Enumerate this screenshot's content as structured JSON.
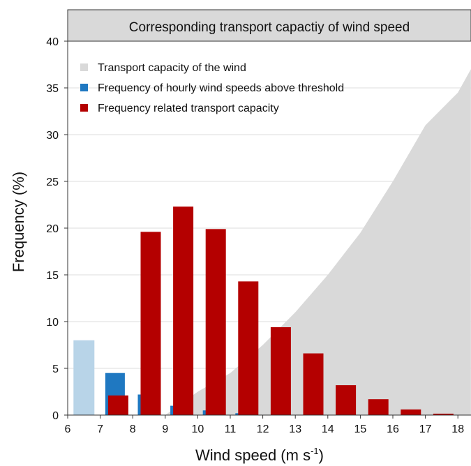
{
  "chart_data": {
    "type": "bar",
    "panel_title": "Corresponding transport capactiy of wind speed",
    "xlabel_main": "Wind speed (m s",
    "xlabel_sup": "-1",
    "xlabel_close": ")",
    "ylabel": "Frequency (%)",
    "xlim": [
      6,
      18.4
    ],
    "ylim": [
      0,
      40
    ],
    "xticks": [
      "6",
      "7",
      "8",
      "9",
      "10",
      "11",
      "12",
      "13",
      "14",
      "15",
      "16",
      "17",
      "18"
    ],
    "yticks": [
      "0",
      "5",
      "10",
      "15",
      "20",
      "25",
      "30",
      "35",
      "40"
    ],
    "grid": true,
    "legend_position": "top-left",
    "legend": [
      {
        "label": "Transport capacity of the wind",
        "color": "#d9d9d9"
      },
      {
        "label": "Frequency of hourly wind speeds above threshold",
        "color": "#1f78c1"
      },
      {
        "label": "Frequency related transport capacity",
        "color": "#b40000"
      }
    ],
    "transport_capacity_curve": {
      "name": "Transport capacity of the wind",
      "color": "#d9d9d9",
      "x": [
        9,
        10,
        11,
        12,
        13,
        14,
        15,
        16,
        17,
        18,
        18.4
      ],
      "y": [
        0,
        2.5,
        4.5,
        7.5,
        11,
        15,
        19.5,
        25,
        31,
        34.5,
        37
      ]
    },
    "series": [
      {
        "name": "Frequency of hourly wind speeds above threshold",
        "color": "#1f78c1",
        "x": [
          6.5,
          7.5,
          8.5,
          9.5,
          10.5,
          11.5
        ],
        "values": [
          8.0,
          4.5,
          2.2,
          1.0,
          0.5,
          0.2
        ],
        "bar_colors": [
          "#b8d4e8",
          "#1f78c1",
          "#1f78c1",
          "#1f78c1",
          "#1f78c1",
          "#1f78c1"
        ]
      },
      {
        "name": "Frequency related transport capacity",
        "color": "#b40000",
        "x": [
          7.5,
          8.5,
          9.5,
          10.5,
          11.5,
          12.5,
          13.5,
          14.5,
          15.5,
          16.5,
          17.5
        ],
        "values": [
          2.1,
          19.6,
          22.3,
          19.9,
          14.3,
          9.4,
          6.6,
          3.2,
          1.7,
          0.6,
          0.15
        ]
      }
    ]
  }
}
